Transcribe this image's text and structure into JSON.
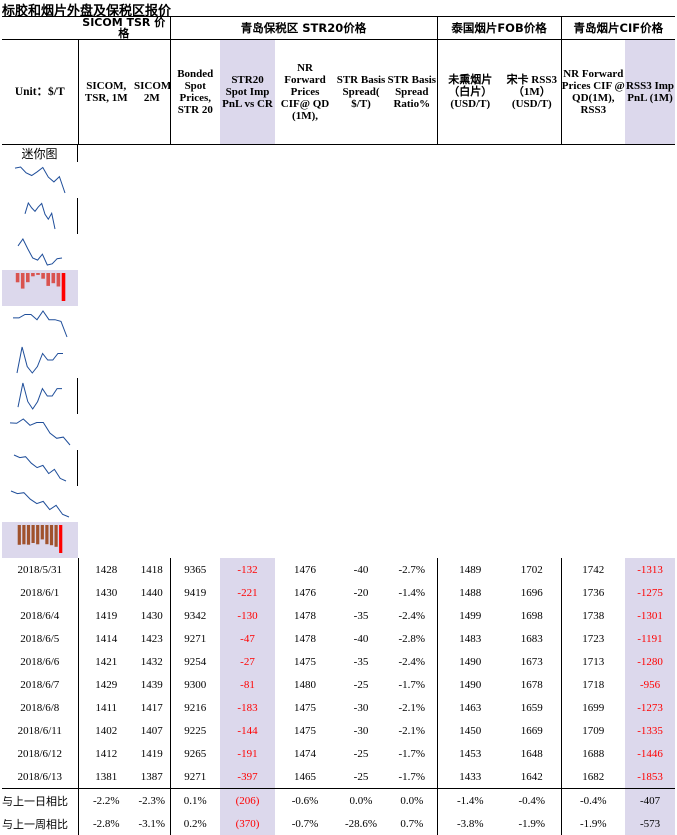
{
  "title": "标胶和烟片外盘及保税区报价",
  "groups": [
    "SICOM TSR 价格",
    "青岛保税区 STR20价格",
    "泰国烟片FOB价格",
    "青岛烟片CIF价格"
  ],
  "unit_label": "Unit：$/T",
  "spark_label": "迷你图",
  "columns": [
    "SICOM, TSR, 1M",
    "SICOM,TSR, 2M",
    "Bonded Spot Prices, STR 20",
    "STR20 Spot Imp PnL vs CR",
    "NR Forward Prices CIF@ QD (1M),",
    "STR Basis Spread( $/T)",
    "STR Basis Spread Ratio%",
    "未熏烟片（白片）(USD/T)",
    "宋卡 RSS3（1M）(USD/T)",
    "NR Forward Prices CIF @ QD(1M), RSS3",
    "RSS3 Imp PnL (1M)"
  ],
  "rows": [
    {
      "date": "2018/5/31",
      "v": [
        "1428",
        "1418",
        "9365",
        "-132",
        "1476",
        "-40",
        "-2.7%",
        "1489",
        "1702",
        "1742",
        "-1313"
      ]
    },
    {
      "date": "2018/6/1",
      "v": [
        "1430",
        "1440",
        "9419",
        "-221",
        "1476",
        "-20",
        "-1.4%",
        "1488",
        "1696",
        "1736",
        "-1275"
      ]
    },
    {
      "date": "2018/6/4",
      "v": [
        "1419",
        "1430",
        "9342",
        "-130",
        "1478",
        "-35",
        "-2.4%",
        "1499",
        "1698",
        "1738",
        "-1301"
      ]
    },
    {
      "date": "2018/6/5",
      "v": [
        "1414",
        "1423",
        "9271",
        "-47",
        "1478",
        "-40",
        "-2.8%",
        "1483",
        "1683",
        "1723",
        "-1191"
      ]
    },
    {
      "date": "2018/6/6",
      "v": [
        "1421",
        "1432",
        "9254",
        "-27",
        "1475",
        "-35",
        "-2.4%",
        "1490",
        "1673",
        "1713",
        "-1280"
      ]
    },
    {
      "date": "2018/6/7",
      "v": [
        "1429",
        "1439",
        "9300",
        "-81",
        "1480",
        "-25",
        "-1.7%",
        "1490",
        "1678",
        "1718",
        "-956"
      ]
    },
    {
      "date": "2018/6/8",
      "v": [
        "1411",
        "1417",
        "9216",
        "-183",
        "1475",
        "-30",
        "-2.1%",
        "1463",
        "1659",
        "1699",
        "-1273"
      ]
    },
    {
      "date": "2018/6/11",
      "v": [
        "1402",
        "1407",
        "9225",
        "-144",
        "1475",
        "-30",
        "-2.1%",
        "1450",
        "1669",
        "1709",
        "-1335"
      ]
    },
    {
      "date": "2018/6/12",
      "v": [
        "1412",
        "1419",
        "9265",
        "-191",
        "1474",
        "-25",
        "-1.7%",
        "1453",
        "1648",
        "1688",
        "-1446"
      ]
    },
    {
      "date": "2018/6/13",
      "v": [
        "1381",
        "1387",
        "9271",
        "-397",
        "1465",
        "-25",
        "-1.7%",
        "1433",
        "1642",
        "1682",
        "-1853"
      ]
    }
  ],
  "footer": [
    {
      "label": "与上一日相比",
      "v": [
        "-2.2%",
        "-2.3%",
        "0.1%",
        "(206)",
        "-0.6%",
        "0.0%",
        "0.0%",
        "-1.4%",
        "-0.4%",
        "-0.4%",
        "-407"
      ]
    },
    {
      "label": "与上一周相比",
      "v": [
        "-2.8%",
        "-3.1%",
        "0.2%",
        "(370)",
        "-0.7%",
        "-28.6%",
        "0.7%",
        "-3.8%",
        "-1.9%",
        "-1.9%",
        "-573"
      ]
    }
  ],
  "colors": {
    "negative": "#ff0000",
    "highlight": "#dcd8ec",
    "bars": "#a0522d",
    "bars_red": "#ff0000",
    "line": "#1f4e9a"
  }
}
